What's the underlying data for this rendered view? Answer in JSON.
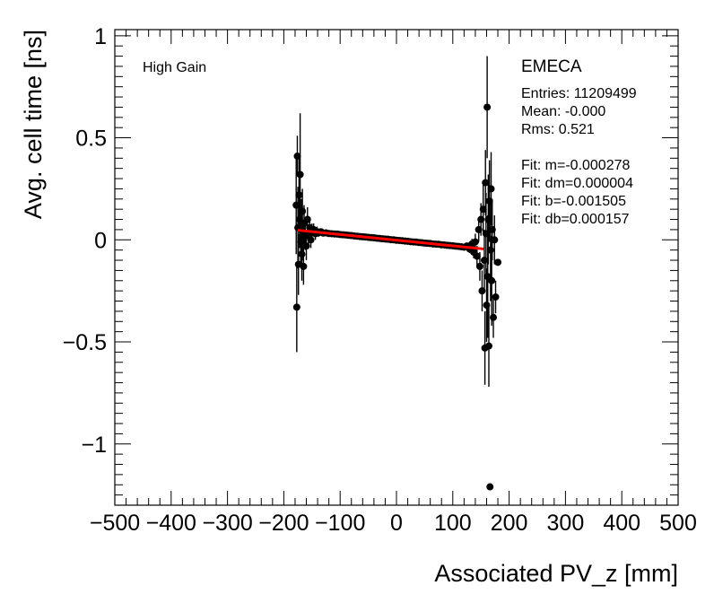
{
  "chart_data": {
    "type": "scatter",
    "xlabel": "Associated PV_z [mm]",
    "ylabel": "Avg. cell time [ns]",
    "xlim": [
      -500,
      500
    ],
    "ylim": [
      -1.3,
      1.03
    ],
    "x_ticks": [
      {
        "value": -500,
        "label": "−500"
      },
      {
        "value": -400,
        "label": "−400"
      },
      {
        "value": -300,
        "label": "−300"
      },
      {
        "value": -200,
        "label": "−200"
      },
      {
        "value": -100,
        "label": "−100"
      },
      {
        "value": 0,
        "label": "0"
      },
      {
        "value": 100,
        "label": "100"
      },
      {
        "value": 200,
        "label": "200"
      },
      {
        "value": 300,
        "label": "300"
      },
      {
        "value": 400,
        "label": "400"
      },
      {
        "value": 500,
        "label": "500"
      }
    ],
    "y_ticks": [
      {
        "value": 1,
        "label": "1"
      },
      {
        "value": 0.5,
        "label": "0.5"
      },
      {
        "value": 0,
        "label": "0"
      },
      {
        "value": -0.5,
        "label": "−0.5"
      },
      {
        "value": -1,
        "label": "−1"
      }
    ],
    "grid": false,
    "annotations": {
      "gain": "High Gain",
      "detector": "EMECA",
      "stats": [
        "Entries: 11209499",
        "Mean: -0.000",
        "Rms: 0.521",
        "",
        "Fit: m=-0.000278",
        "Fit: dm=0.000004",
        "Fit: b=-0.001505",
        "Fit: db=0.000157"
      ]
    },
    "fit": {
      "m": -0.000278,
      "b": -0.001505,
      "x_range": [
        -175,
        155
      ],
      "color": "#ff0000"
    },
    "marker_color": "#000000",
    "series": [
      {
        "points": [
          {
            "x": -178,
            "y": 0.17,
            "err": 0.24
          },
          {
            "x": -177,
            "y": -0.33,
            "err": 0.22
          },
          {
            "x": -176,
            "y": 0.41,
            "err": 0.1
          },
          {
            "x": -175,
            "y": 0.06,
            "err": 0.2
          },
          {
            "x": -174,
            "y": -0.12,
            "err": 0.15
          },
          {
            "x": -173,
            "y": 0.22,
            "err": 0.18
          },
          {
            "x": -172,
            "y": 0.1,
            "err": 0.14
          },
          {
            "x": -171,
            "y": 0.32,
            "err": 0.3
          },
          {
            "x": -170,
            "y": -0.01,
            "err": 0.12
          },
          {
            "x": -169,
            "y": 0.05,
            "err": 0.15
          },
          {
            "x": -168,
            "y": -0.07,
            "err": 0.13
          },
          {
            "x": -167,
            "y": 0.14,
            "err": 0.11
          },
          {
            "x": -166,
            "y": 0.0,
            "err": 0.1
          },
          {
            "x": -165,
            "y": -0.13,
            "err": 0.09
          },
          {
            "x": -164,
            "y": 0.08,
            "err": 0.09
          },
          {
            "x": -162,
            "y": 0.03,
            "err": 0.08
          },
          {
            "x": -160,
            "y": -0.03,
            "err": 0.07
          },
          {
            "x": -158,
            "y": 0.1,
            "err": 0.06
          },
          {
            "x": -156,
            "y": 0.02,
            "err": 0.05
          },
          {
            "x": -154,
            "y": 0.06,
            "err": 0.05
          },
          {
            "x": -152,
            "y": 0.0,
            "err": 0.04
          },
          {
            "x": -150,
            "y": 0.04,
            "err": 0.04
          },
          {
            "x": -147,
            "y": 0.05,
            "err": 0.03
          },
          {
            "x": -144,
            "y": 0.03,
            "err": 0.03
          },
          {
            "x": -141,
            "y": 0.04,
            "err": 0.025
          },
          {
            "x": -138,
            "y": 0.035,
            "err": 0.02
          },
          {
            "x": -134,
            "y": 0.04,
            "err": 0.015
          },
          {
            "x": -130,
            "y": 0.033,
            "err": 0.01
          },
          {
            "x": -125,
            "y": 0.034,
            "err": 0.01
          },
          {
            "x": -120,
            "y": 0.031,
            "err": 0.008
          },
          {
            "x": -115,
            "y": 0.03,
            "err": 0.007
          },
          {
            "x": -110,
            "y": 0.029,
            "err": 0.006
          },
          {
            "x": -105,
            "y": 0.028,
            "err": 0.006
          },
          {
            "x": -100,
            "y": 0.026,
            "err": 0.005
          },
          {
            "x": -95,
            "y": 0.025,
            "err": 0.005
          },
          {
            "x": -90,
            "y": 0.024,
            "err": 0.005
          },
          {
            "x": -85,
            "y": 0.022,
            "err": 0.004
          },
          {
            "x": -80,
            "y": 0.021,
            "err": 0.004
          },
          {
            "x": -75,
            "y": 0.019,
            "err": 0.004
          },
          {
            "x": -70,
            "y": 0.018,
            "err": 0.004
          },
          {
            "x": -65,
            "y": 0.016,
            "err": 0.004
          },
          {
            "x": -60,
            "y": 0.015,
            "err": 0.004
          },
          {
            "x": -55,
            "y": 0.014,
            "err": 0.004
          },
          {
            "x": -50,
            "y": 0.012,
            "err": 0.004
          },
          {
            "x": -45,
            "y": 0.011,
            "err": 0.004
          },
          {
            "x": -40,
            "y": 0.01,
            "err": 0.004
          },
          {
            "x": -35,
            "y": 0.008,
            "err": 0.004
          },
          {
            "x": -30,
            "y": 0.007,
            "err": 0.004
          },
          {
            "x": -25,
            "y": 0.005,
            "err": 0.004
          },
          {
            "x": -20,
            "y": 0.004,
            "err": 0.004
          },
          {
            "x": -15,
            "y": 0.003,
            "err": 0.004
          },
          {
            "x": -10,
            "y": 0.001,
            "err": 0.004
          },
          {
            "x": -5,
            "y": 0.0,
            "err": 0.004
          },
          {
            "x": 0,
            "y": -0.002,
            "err": 0.004
          },
          {
            "x": 5,
            "y": -0.003,
            "err": 0.004
          },
          {
            "x": 10,
            "y": -0.004,
            "err": 0.004
          },
          {
            "x": 15,
            "y": -0.006,
            "err": 0.004
          },
          {
            "x": 20,
            "y": -0.007,
            "err": 0.004
          },
          {
            "x": 25,
            "y": -0.009,
            "err": 0.004
          },
          {
            "x": 30,
            "y": -0.01,
            "err": 0.004
          },
          {
            "x": 35,
            "y": -0.011,
            "err": 0.004
          },
          {
            "x": 40,
            "y": -0.013,
            "err": 0.004
          },
          {
            "x": 45,
            "y": -0.014,
            "err": 0.004
          },
          {
            "x": 50,
            "y": -0.016,
            "err": 0.004
          },
          {
            "x": 55,
            "y": -0.017,
            "err": 0.004
          },
          {
            "x": 60,
            "y": -0.018,
            "err": 0.004
          },
          {
            "x": 65,
            "y": -0.02,
            "err": 0.004
          },
          {
            "x": 70,
            "y": -0.021,
            "err": 0.004
          },
          {
            "x": 75,
            "y": -0.022,
            "err": 0.004
          },
          {
            "x": 80,
            "y": -0.024,
            "err": 0.005
          },
          {
            "x": 85,
            "y": -0.025,
            "err": 0.005
          },
          {
            "x": 90,
            "y": -0.027,
            "err": 0.005
          },
          {
            "x": 95,
            "y": -0.028,
            "err": 0.006
          },
          {
            "x": 100,
            "y": -0.029,
            "err": 0.006
          },
          {
            "x": 105,
            "y": -0.031,
            "err": 0.007
          },
          {
            "x": 110,
            "y": -0.032,
            "err": 0.008
          },
          {
            "x": 115,
            "y": -0.034,
            "err": 0.01
          },
          {
            "x": 120,
            "y": -0.036,
            "err": 0.012
          },
          {
            "x": 125,
            "y": -0.03,
            "err": 0.015
          },
          {
            "x": 130,
            "y": -0.045,
            "err": 0.02
          },
          {
            "x": 134,
            "y": -0.02,
            "err": 0.025
          },
          {
            "x": 137,
            "y": -0.06,
            "err": 0.03
          },
          {
            "x": 140,
            "y": -0.01,
            "err": 0.04
          },
          {
            "x": 143,
            "y": -0.08,
            "err": 0.05
          },
          {
            "x": 146,
            "y": 0.05,
            "err": 0.06
          },
          {
            "x": 148,
            "y": -0.13,
            "err": 0.07
          },
          {
            "x": 150,
            "y": 0.1,
            "err": 0.08
          },
          {
            "x": 152,
            "y": -0.25,
            "err": 0.1
          },
          {
            "x": 154,
            "y": 0.15,
            "err": 0.12
          },
          {
            "x": 156,
            "y": -0.1,
            "err": 0.15
          },
          {
            "x": 157,
            "y": -0.53,
            "err": 0.18
          },
          {
            "x": 158,
            "y": 0.28,
            "err": 0.16
          },
          {
            "x": 159,
            "y": 0.03,
            "err": 0.2
          },
          {
            "x": 160,
            "y": -0.32,
            "err": 0.18
          },
          {
            "x": 161,
            "y": 0.65,
            "err": 0.25
          },
          {
            "x": 162,
            "y": -0.18,
            "err": 0.3
          },
          {
            "x": 163,
            "y": 0.1,
            "err": 0.22
          },
          {
            "x": 164,
            "y": -0.52,
            "err": 0.2
          },
          {
            "x": 165,
            "y": 0.19,
            "err": 0.2
          },
          {
            "x": 166,
            "y": -1.21,
            "err": 0.0
          },
          {
            "x": 167,
            "y": -0.05,
            "err": 0.25
          },
          {
            "x": 168,
            "y": 0.25,
            "err": 0.18
          },
          {
            "x": 169,
            "y": -0.2,
            "err": 0.22
          },
          {
            "x": 170,
            "y": 0.05,
            "err": 0.15
          },
          {
            "x": 172,
            "y": -0.38,
            "err": 0.1
          },
          {
            "x": 174,
            "y": 0.0,
            "err": 0.12
          },
          {
            "x": 176,
            "y": -0.28,
            "err": 0.08
          },
          {
            "x": 180,
            "y": -0.11,
            "err": 0.0
          }
        ]
      }
    ]
  }
}
